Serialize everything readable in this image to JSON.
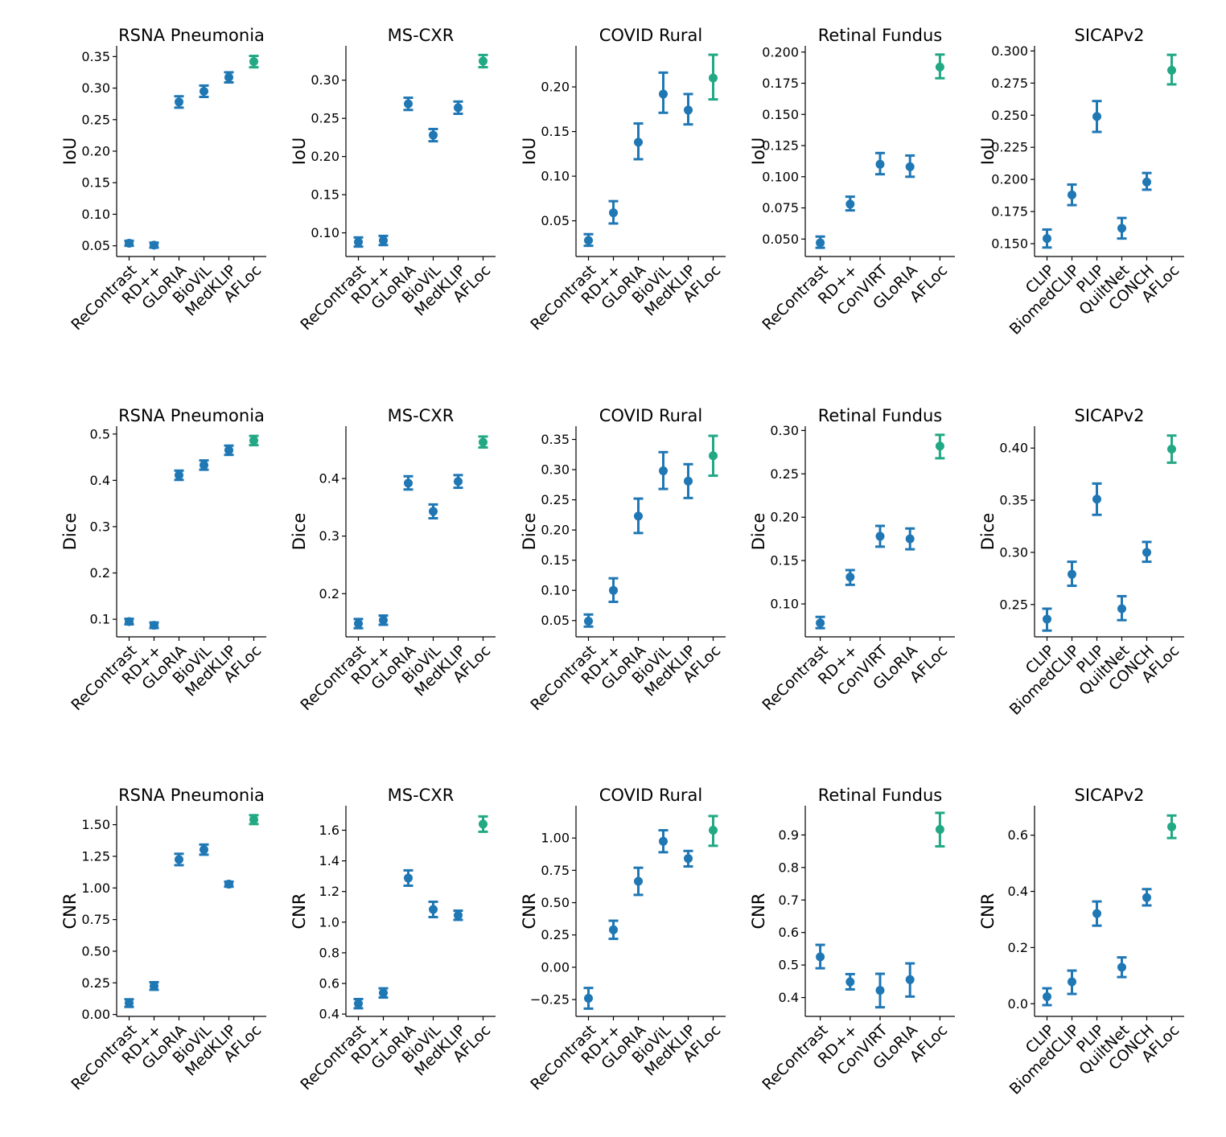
{
  "colors": {
    "default": "#1f77b4",
    "highlight": "#22a884"
  },
  "chart_data": [
    {
      "type": "scatter",
      "title": "RSNA Pneumonia",
      "ylabel": "IoU",
      "highlight": "AFLoc",
      "categories": [
        "ReContrast",
        "RD++",
        "GLoRIA",
        "BioViL",
        "MedKLIP",
        "AFLoc"
      ],
      "values": [
        0.054,
        0.051,
        0.278,
        0.295,
        0.317,
        0.342
      ],
      "lower": [
        0.05,
        0.047,
        0.269,
        0.286,
        0.309,
        0.333
      ],
      "upper": [
        0.058,
        0.055,
        0.287,
        0.304,
        0.325,
        0.351
      ],
      "ticks": [
        "0.05",
        "0.10",
        "0.15",
        "0.20",
        "0.25",
        "0.30",
        "0.35"
      ],
      "ylim": [
        0.033,
        0.367
      ]
    },
    {
      "type": "scatter",
      "title": "MS-CXR",
      "ylabel": "IoU",
      "highlight": "AFLoc",
      "categories": [
        "ReContrast",
        "RD++",
        "GLoRIA",
        "BioViL",
        "MedKLIP",
        "AFLoc"
      ],
      "values": [
        0.088,
        0.09,
        0.269,
        0.228,
        0.264,
        0.325
      ],
      "lower": [
        0.082,
        0.084,
        0.261,
        0.22,
        0.256,
        0.317
      ],
      "upper": [
        0.094,
        0.096,
        0.277,
        0.236,
        0.272,
        0.333
      ],
      "ticks": [
        "0.10",
        "0.15",
        "0.20",
        "0.25",
        "0.30"
      ],
      "ylim": [
        0.069,
        0.345
      ]
    },
    {
      "type": "scatter",
      "title": "COVID Rural",
      "ylabel": "IoU",
      "highlight": "AFLoc",
      "categories": [
        "ReContrast",
        "RD++",
        "GLoRIA",
        "BioViL",
        "MedKLIP",
        "AFLoc"
      ],
      "values": [
        0.028,
        0.059,
        0.138,
        0.192,
        0.174,
        0.21
      ],
      "lower": [
        0.022,
        0.047,
        0.119,
        0.171,
        0.158,
        0.186
      ],
      "upper": [
        0.035,
        0.072,
        0.159,
        0.216,
        0.192,
        0.236
      ],
      "ticks": [
        "0.05",
        "0.10",
        "0.15",
        "0.20"
      ],
      "ylim": [
        0.01,
        0.246
      ]
    },
    {
      "type": "scatter",
      "title": "Retinal Fundus",
      "ylabel": "IoU",
      "highlight": "AFLoc",
      "categories": [
        "ReContrast",
        "RD++",
        "ConVIRT",
        "GLoRIA",
        "AFLoc"
      ],
      "values": [
        0.047,
        0.078,
        0.11,
        0.108,
        0.188
      ],
      "lower": [
        0.043,
        0.073,
        0.102,
        0.1,
        0.179
      ],
      "upper": [
        0.052,
        0.084,
        0.119,
        0.117,
        0.198
      ],
      "ticks": [
        "0.050",
        "0.075",
        "0.100",
        "0.125",
        "0.150",
        "0.175",
        "0.200"
      ],
      "ylim": [
        0.036,
        0.205
      ]
    },
    {
      "type": "scatter",
      "title": "SICAPv2",
      "ylabel": "IoU",
      "highlight": "AFLoc",
      "categories": [
        "CLIP",
        "BiomedCLIP",
        "PLIP",
        "QuiltNet",
        "CONCH",
        "AFLoc"
      ],
      "values": [
        0.154,
        0.188,
        0.249,
        0.162,
        0.198,
        0.285
      ],
      "lower": [
        0.147,
        0.18,
        0.237,
        0.154,
        0.192,
        0.274
      ],
      "upper": [
        0.161,
        0.196,
        0.261,
        0.17,
        0.205,
        0.297
      ],
      "ticks": [
        "0.150",
        "0.175",
        "0.200",
        "0.225",
        "0.250",
        "0.275",
        "0.300"
      ],
      "ylim": [
        0.14,
        0.304
      ]
    },
    {
      "type": "scatter",
      "title": "RSNA Pneumonia",
      "ylabel": "Dice",
      "highlight": "AFLoc",
      "categories": [
        "ReContrast",
        "RD++",
        "GLoRIA",
        "BioViL",
        "MedKLIP",
        "AFLoc"
      ],
      "values": [
        0.095,
        0.087,
        0.411,
        0.433,
        0.465,
        0.486
      ],
      "lower": [
        0.089,
        0.081,
        0.401,
        0.423,
        0.455,
        0.476
      ],
      "upper": [
        0.101,
        0.093,
        0.421,
        0.443,
        0.475,
        0.496
      ],
      "ticks": [
        "0.1",
        "0.2",
        "0.3",
        "0.4",
        "0.5"
      ],
      "ylim": [
        0.062,
        0.517
      ]
    },
    {
      "type": "scatter",
      "title": "MS-CXR",
      "ylabel": "Dice",
      "highlight": "AFLoc",
      "categories": [
        "ReContrast",
        "RD++",
        "GLoRIA",
        "BioViL",
        "MedKLIP",
        "AFLoc"
      ],
      "values": [
        0.148,
        0.154,
        0.392,
        0.343,
        0.395,
        0.463
      ],
      "lower": [
        0.14,
        0.146,
        0.381,
        0.331,
        0.384,
        0.454
      ],
      "upper": [
        0.156,
        0.162,
        0.404,
        0.355,
        0.406,
        0.473
      ],
      "ticks": [
        "0.2",
        "0.3",
        "0.4"
      ],
      "ylim": [
        0.125,
        0.491
      ]
    },
    {
      "type": "scatter",
      "title": "COVID Rural",
      "ylabel": "Dice",
      "highlight": "AFLoc",
      "categories": [
        "ReContrast",
        "RD++",
        "GLoRIA",
        "BioViL",
        "MedKLIP",
        "AFLoc"
      ],
      "values": [
        0.049,
        0.1,
        0.223,
        0.298,
        0.281,
        0.323
      ],
      "lower": [
        0.04,
        0.081,
        0.195,
        0.268,
        0.253,
        0.29
      ],
      "upper": [
        0.06,
        0.12,
        0.252,
        0.329,
        0.309,
        0.356
      ],
      "ticks": [
        "0.05",
        "0.10",
        "0.15",
        "0.20",
        "0.25",
        "0.30",
        "0.35"
      ],
      "ylim": [
        0.023,
        0.372
      ]
    },
    {
      "type": "scatter",
      "title": "Retinal Fundus",
      "ylabel": "Dice",
      "highlight": "AFLoc",
      "categories": [
        "ReContrast",
        "RD++",
        "ConVIRT",
        "GLoRIA",
        "AFLoc"
      ],
      "values": [
        0.078,
        0.131,
        0.178,
        0.175,
        0.282
      ],
      "lower": [
        0.072,
        0.122,
        0.166,
        0.163,
        0.268
      ],
      "upper": [
        0.085,
        0.139,
        0.19,
        0.187,
        0.295
      ],
      "ticks": [
        "0.10",
        "0.15",
        "0.20",
        "0.25",
        "0.30"
      ],
      "ylim": [
        0.062,
        0.305
      ]
    },
    {
      "type": "scatter",
      "title": "SICAPv2",
      "ylabel": "Dice",
      "highlight": "AFLoc",
      "categories": [
        "CLIP",
        "BiomedCLIP",
        "PLIP",
        "QuiltNet",
        "CONCH",
        "AFLoc"
      ],
      "values": [
        0.236,
        0.279,
        0.351,
        0.246,
        0.3,
        0.399
      ],
      "lower": [
        0.225,
        0.268,
        0.336,
        0.235,
        0.291,
        0.386
      ],
      "upper": [
        0.246,
        0.291,
        0.366,
        0.258,
        0.31,
        0.412
      ],
      "ticks": [
        "0.25",
        "0.30",
        "0.35",
        "0.40"
      ],
      "ylim": [
        0.219,
        0.421
      ]
    },
    {
      "type": "scatter",
      "title": "RSNA Pneumonia",
      "ylabel": "CNR",
      "highlight": "AFLoc",
      "categories": [
        "ReContrast",
        "RD++",
        "GLoRIA",
        "BioViL",
        "MedKLIP",
        "AFLoc"
      ],
      "values": [
        0.09,
        0.225,
        1.225,
        1.303,
        1.03,
        1.54
      ],
      "lower": [
        0.06,
        0.195,
        1.18,
        1.263,
        1.01,
        1.505
      ],
      "upper": [
        0.12,
        0.255,
        1.27,
        1.343,
        1.05,
        1.575
      ],
      "ticks": [
        "0.00",
        "0.25",
        "0.50",
        "0.75",
        "1.00",
        "1.25",
        "1.50"
      ],
      "ylim": [
        -0.015,
        1.65
      ]
    },
    {
      "type": "scatter",
      "title": "MS-CXR",
      "ylabel": "CNR",
      "highlight": "AFLoc",
      "categories": [
        "ReContrast",
        "RD++",
        "GLoRIA",
        "BioViL",
        "MedKLIP",
        "AFLoc"
      ],
      "values": [
        0.468,
        0.538,
        1.288,
        1.083,
        1.045,
        1.64
      ],
      "lower": [
        0.438,
        0.508,
        1.238,
        1.033,
        1.015,
        1.59
      ],
      "upper": [
        0.498,
        0.568,
        1.338,
        1.133,
        1.075,
        1.69
      ],
      "ticks": [
        "0.4",
        "0.6",
        "0.8",
        "1.0",
        "1.2",
        "1.4",
        "1.6"
      ],
      "ylim": [
        0.385,
        1.76
      ]
    },
    {
      "type": "scatter",
      "title": "COVID Rural",
      "ylabel": "CNR",
      "highlight": "AFLoc",
      "categories": [
        "ReContrast",
        "RD++",
        "GLoRIA",
        "BioViL",
        "MedKLIP",
        "AFLoc"
      ],
      "values": [
        -0.24,
        0.29,
        0.665,
        0.975,
        0.842,
        1.06
      ],
      "lower": [
        -0.32,
        0.22,
        0.56,
        0.89,
        0.78,
        0.94
      ],
      "upper": [
        -0.16,
        0.36,
        0.77,
        1.06,
        0.9,
        1.17
      ],
      "ticks": [
        "−0.25",
        "0.00",
        "0.25",
        "0.50",
        "0.75",
        "1.00"
      ],
      "ylim": [
        -0.38,
        1.25
      ]
    },
    {
      "type": "scatter",
      "title": "Retinal Fundus",
      "ylabel": "CNR",
      "highlight": "AFLoc",
      "categories": [
        "ReContrast",
        "RD++",
        "ConVIRT",
        "GLoRIA",
        "AFLoc"
      ],
      "values": [
        0.525,
        0.448,
        0.422,
        0.455,
        0.917
      ],
      "lower": [
        0.49,
        0.425,
        0.37,
        0.403,
        0.865
      ],
      "upper": [
        0.562,
        0.472,
        0.473,
        0.505,
        0.968
      ],
      "ticks": [
        "0.4",
        "0.5",
        "0.6",
        "0.7",
        "0.8",
        "0.9"
      ],
      "ylim": [
        0.342,
        0.99
      ]
    },
    {
      "type": "scatter",
      "title": "SICAPv2",
      "ylabel": "CNR",
      "highlight": "AFLoc",
      "categories": [
        "CLIP",
        "BiomedCLIP",
        "PLIP",
        "QuiltNet",
        "CONCH",
        "AFLoc"
      ],
      "values": [
        0.025,
        0.078,
        0.321,
        0.13,
        0.378,
        0.63
      ],
      "lower": [
        -0.005,
        0.035,
        0.278,
        0.095,
        0.35,
        0.59
      ],
      "upper": [
        0.055,
        0.118,
        0.364,
        0.165,
        0.408,
        0.67
      ],
      "ticks": [
        "0.0",
        "0.2",
        "0.4",
        "0.6"
      ],
      "ylim": [
        -0.045,
        0.705
      ]
    }
  ]
}
